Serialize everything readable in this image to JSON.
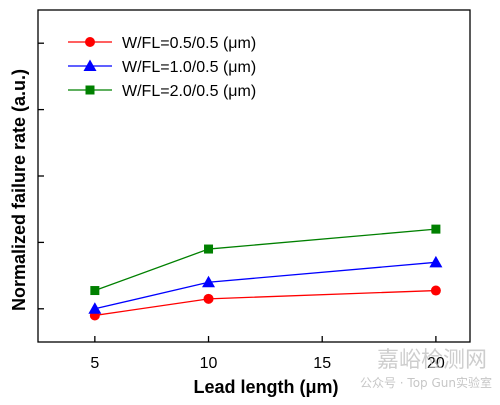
{
  "chart_data": {
    "type": "line",
    "title": "",
    "xlabel": "Lead length (μm)",
    "ylabel": "Normalized failure rate (a.u.)",
    "x": [
      5,
      10,
      20
    ],
    "xlim": [
      2.5,
      21.5
    ],
    "x_ticks": [
      5,
      10,
      15,
      20
    ],
    "ylim": [
      0,
      10
    ],
    "y_tick_labels_shown": false,
    "grid": false,
    "legend_position": "top-left",
    "series": [
      {
        "name": "W/FL=0.5/0.5 (μm)",
        "values": [
          0.8,
          1.3,
          1.55
        ],
        "color": "#ff0000",
        "marker": "circle"
      },
      {
        "name": "W/FL=1.0/0.5 (μm)",
        "values": [
          1.0,
          1.8,
          2.4
        ],
        "color": "#0000ff",
        "marker": "triangle"
      },
      {
        "name": "W/FL=2.0/0.5 (μm)",
        "values": [
          1.55,
          2.8,
          3.4
        ],
        "color": "#008000",
        "marker": "square"
      }
    ]
  },
  "watermark": {
    "line1": "嘉峪检测网",
    "line2": "公众号 · Top Gun实验室"
  }
}
